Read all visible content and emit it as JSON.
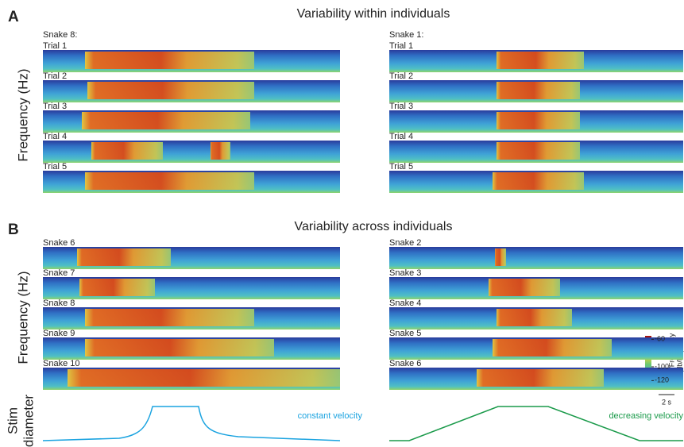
{
  "panel_a": {
    "letter": "A",
    "title": "Variability within individuals",
    "y_label": "Frequency (Hz)",
    "left": {
      "subject": "Snake 8:",
      "rows": [
        "Trial 1",
        "Trial 2",
        "Trial 3",
        "Trial 4",
        "Trial 5"
      ]
    },
    "right": {
      "subject": "Snake 1:",
      "rows": [
        "Trial 1",
        "Trial 2",
        "Trial 3",
        "Trial 4",
        "Trial 5"
      ]
    }
  },
  "panel_b": {
    "letter": "B",
    "title": "Variability across individuals",
    "y_label": "Frequency (Hz)",
    "left": {
      "rows": [
        "Snake 6",
        "Snake 7",
        "Snake 8",
        "Snake 9",
        "Snake 10"
      ]
    },
    "right": {
      "rows": [
        "Snake 2",
        "Snake 3",
        "Snake 4",
        "Snake 5",
        "Snake 6"
      ]
    }
  },
  "colorbar": {
    "title_lines": [
      "Power/Frequency",
      "(db/Hz)"
    ],
    "lim": [
      -55,
      -130
    ],
    "ticks": [
      -60,
      -100,
      -120
    ]
  },
  "scale_bar": "2 s",
  "stim": {
    "y_label_lines": [
      "Stim",
      "diameter"
    ],
    "left_label": "constant velocity",
    "right_label": "decreasing velocity"
  }
}
